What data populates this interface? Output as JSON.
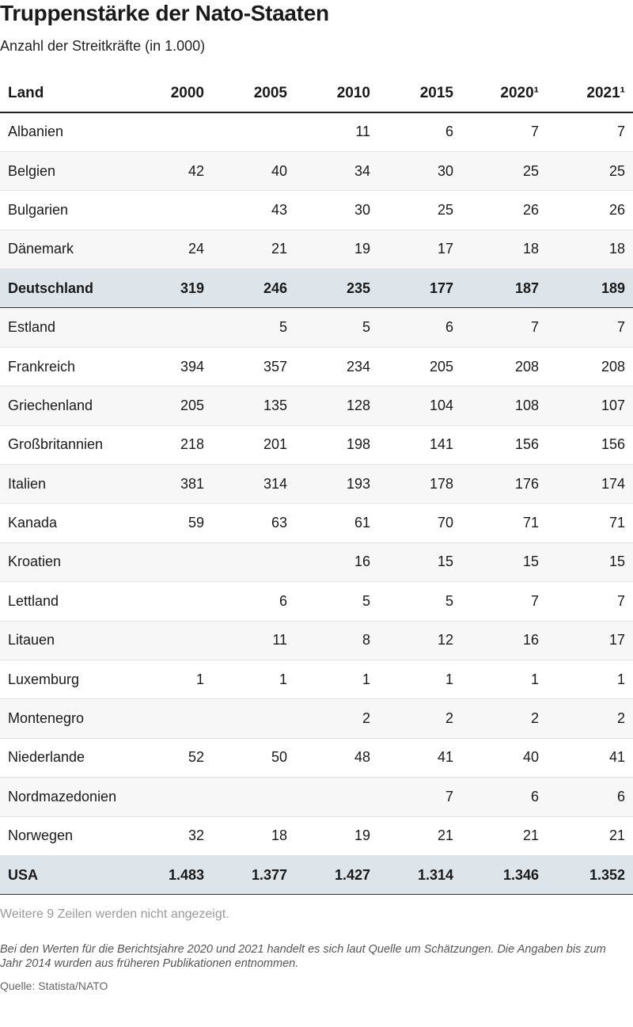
{
  "title": "Truppenstärke der Nato-Staaten",
  "subtitle": "Anzahl der Streitkräfte (in 1.000)",
  "chart_data": {
    "type": "table",
    "columns": [
      "Land",
      "2000",
      "2005",
      "2010",
      "2015",
      "2020¹",
      "2021¹"
    ],
    "rows": [
      {
        "land": "Albanien",
        "values": [
          "",
          "",
          "11",
          "6",
          "7",
          "7"
        ]
      },
      {
        "land": "Belgien",
        "values": [
          "42",
          "40",
          "34",
          "30",
          "25",
          "25"
        ]
      },
      {
        "land": "Bulgarien",
        "values": [
          "",
          "43",
          "30",
          "25",
          "26",
          "26"
        ]
      },
      {
        "land": "Dänemark",
        "values": [
          "24",
          "21",
          "19",
          "17",
          "18",
          "18"
        ]
      },
      {
        "land": "Deutschland",
        "values": [
          "319",
          "246",
          "235",
          "177",
          "187",
          "189"
        ],
        "highlight": true
      },
      {
        "land": "Estland",
        "values": [
          "",
          "5",
          "5",
          "6",
          "7",
          "7"
        ]
      },
      {
        "land": "Frankreich",
        "values": [
          "394",
          "357",
          "234",
          "205",
          "208",
          "208"
        ]
      },
      {
        "land": "Griechenland",
        "values": [
          "205",
          "135",
          "128",
          "104",
          "108",
          "107"
        ]
      },
      {
        "land": "Großbritannien",
        "values": [
          "218",
          "201",
          "198",
          "141",
          "156",
          "156"
        ]
      },
      {
        "land": "Italien",
        "values": [
          "381",
          "314",
          "193",
          "178",
          "176",
          "174"
        ]
      },
      {
        "land": "Kanada",
        "values": [
          "59",
          "63",
          "61",
          "70",
          "71",
          "71"
        ]
      },
      {
        "land": "Kroatien",
        "values": [
          "",
          "",
          "16",
          "15",
          "15",
          "15"
        ]
      },
      {
        "land": "Lettland",
        "values": [
          "",
          "6",
          "5",
          "5",
          "7",
          "7"
        ]
      },
      {
        "land": "Litauen",
        "values": [
          "",
          "11",
          "8",
          "12",
          "16",
          "17"
        ]
      },
      {
        "land": "Luxemburg",
        "values": [
          "1",
          "1",
          "1",
          "1",
          "1",
          "1"
        ]
      },
      {
        "land": "Montenegro",
        "values": [
          "",
          "",
          "2",
          "2",
          "2",
          "2"
        ]
      },
      {
        "land": "Niederlande",
        "values": [
          "52",
          "50",
          "48",
          "41",
          "40",
          "41"
        ]
      },
      {
        "land": "Nordmazedonien",
        "values": [
          "",
          "",
          "",
          "7",
          "6",
          "6"
        ]
      },
      {
        "land": "Norwegen",
        "values": [
          "32",
          "18",
          "19",
          "21",
          "21",
          "21"
        ]
      },
      {
        "land": "USA",
        "values": [
          "1.483",
          "1.377",
          "1.427",
          "1.314",
          "1.346",
          "1.352"
        ],
        "highlight": true
      }
    ]
  },
  "hidden_rows_note": "Weitere 9 Zeilen werden nicht angezeigt.",
  "note": "Bei den Werten für die Berichtsjahre 2020 und 2021 handelt es sich laut Quelle um Schätzungen. Die Angaben bis zum Jahr 2014 wurden aus früheren Publikationen entnommen.",
  "source": "Quelle: Statista/NATO"
}
